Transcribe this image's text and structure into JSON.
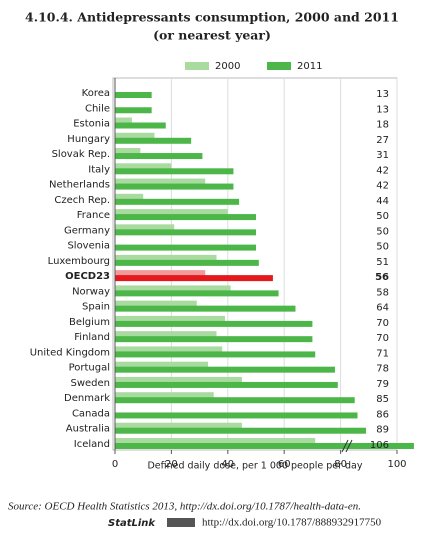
{
  "chart_data": {
    "type": "hbar",
    "title": "4.10.4.  Antidepressants consumption, 2000 and 2011",
    "subtitle": "(or nearest year)",
    "categories": [
      "Korea",
      "Chile",
      "Estonia",
      "Hungary",
      "Slovak Rep.",
      "Italy",
      "Netherlands",
      "Czech Rep.",
      "France",
      "Germany",
      "Slovenia",
      "Luxembourg",
      "OECD23",
      "Norway",
      "Spain",
      "Belgium",
      "Finland",
      "United Kingdom",
      "Portugal",
      "Sweden",
      "Denmark",
      "Canada",
      "Australia",
      "Iceland"
    ],
    "series": [
      {
        "name": "2000",
        "color": "#a9dba0",
        "highlight_color": "#f29a9a",
        "values": [
          null,
          null,
          6,
          14,
          9,
          20,
          32,
          10,
          40,
          21,
          null,
          36,
          32,
          41,
          29,
          39,
          36,
          38,
          33,
          45,
          35,
          null,
          45,
          71
        ]
      },
      {
        "name": "2011",
        "color": "#4cb748",
        "highlight_color": "#e3191b",
        "values": [
          13,
          13,
          18,
          27,
          31,
          42,
          42,
          44,
          50,
          50,
          50,
          51,
          56,
          58,
          64,
          70,
          70,
          71,
          78,
          79,
          85,
          86,
          89,
          106
        ]
      }
    ],
    "highlight": "OECD23",
    "xlim": [
      0,
      100
    ],
    "xticks": [
      0,
      20,
      40,
      60,
      80,
      100
    ],
    "xlabel": "Defined daily dose, per 1 000 people per day",
    "grid": true,
    "source": "Source: OECD Health Statistics 2013, http://dx.doi.org/10.1787/health-data-en.",
    "statlink_label": "StatLink",
    "statlink_url": "http://dx.doi.org/10.1787/888932917750"
  }
}
